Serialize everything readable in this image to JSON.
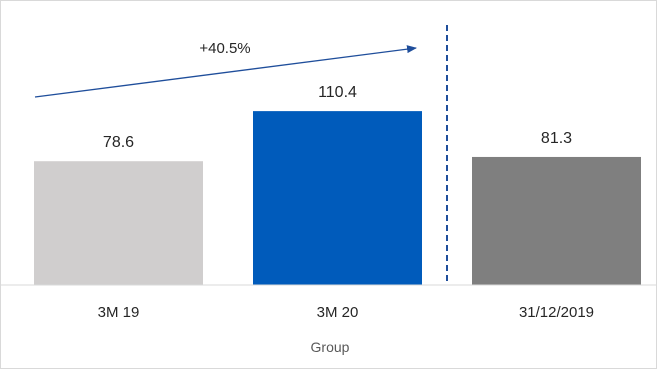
{
  "chart_data": {
    "type": "bar",
    "categories": [
      "3M 19",
      "3M 20",
      "31/12/2019"
    ],
    "values": [
      78.6,
      110.4,
      81.3
    ],
    "data_labels": [
      "78.6",
      "110.4",
      "81.3"
    ],
    "xlabel": "Group",
    "ylabel": "",
    "ylim": [
      0,
      140
    ],
    "grid": false,
    "colors": [
      "#d0cece",
      "#005bbb",
      "#7f7f7f"
    ],
    "annotation": {
      "text": "+40.5%",
      "from_category": "3M 19",
      "to_category": "3M 20",
      "color": "#1f4e9b"
    },
    "separator": {
      "style": "dashed",
      "between": [
        "3M 20",
        "31/12/2019"
      ],
      "color": "#1f4e9b"
    }
  }
}
